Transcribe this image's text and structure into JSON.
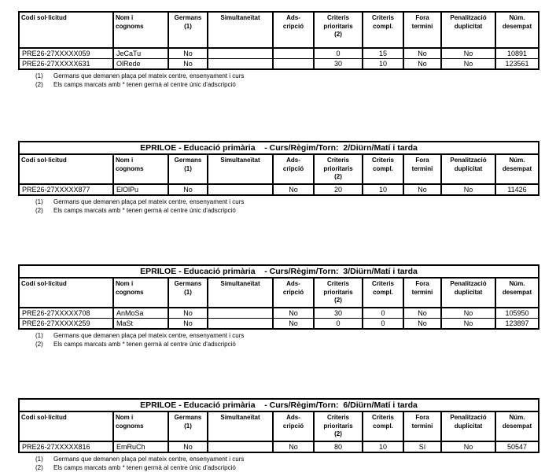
{
  "columns": [
    "Codi sol·licitud",
    "Nom i\ncognoms",
    "Germans\n(1)",
    "Simultaneïtat",
    "Ads-\ncripció",
    "Criteris\nprioritaris\n(2)",
    "Criteris\ncompl.",
    "Fora\ntermini",
    "Penalització\nduplicitat",
    "Núm.\ndesempat"
  ],
  "footnotes": [
    {
      "num": "(1)",
      "text": "Germans que demanen plaça pel mateix centre, ensenyament i curs"
    },
    {
      "num": "(2)",
      "text": "Els camps marcats amb * tenen germà al centre únic d'adscripció"
    }
  ],
  "tables": [
    {
      "title": null,
      "rows": [
        [
          "PRE26-27XXXXX059",
          "JeCaTu",
          "No",
          "",
          "",
          "0",
          "15",
          "No",
          "No",
          "10891"
        ],
        [
          "PRE26-27XXXXX631",
          "OlRede",
          "No",
          "",
          "",
          "30",
          "10",
          "No",
          "No",
          "123561"
        ]
      ]
    },
    {
      "title": "EPRILOE - Educació primària    - Curs/Règim/Torn:  2/Diürn/Matí i tarda",
      "rows": [
        [
          "PRE26-27XXXXX877",
          "ElOlPu",
          "No",
          "",
          "No",
          "20",
          "10",
          "No",
          "No",
          "11426"
        ]
      ]
    },
    {
      "title": "EPRILOE - Educació primària    - Curs/Règim/Torn:  3/Diürn/Matí i tarda",
      "rows": [
        [
          "PRE26-27XXXXX708",
          "AnMoSa",
          "No",
          "",
          "No",
          "30",
          "0",
          "No",
          "No",
          "105950"
        ],
        [
          "PRE26-27XXXXX259",
          "MaSt",
          "No",
          "",
          "No",
          "0",
          "0",
          "No",
          "No",
          "123897"
        ]
      ]
    },
    {
      "title": "EPRILOE - Educació primària    - Curs/Règim/Torn:  6/Diürn/Matí i tarda",
      "rows": [
        [
          "PRE26-27XXXXX816",
          "EmRuCh",
          "No",
          "",
          "No",
          "80",
          "10",
          "Sí",
          "No",
          "50547"
        ]
      ]
    }
  ]
}
